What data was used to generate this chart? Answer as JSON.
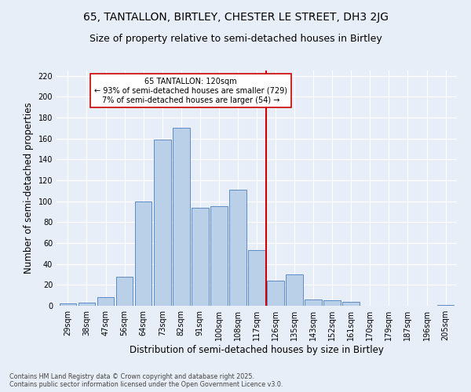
{
  "title1": "65, TANTALLON, BIRTLEY, CHESTER LE STREET, DH3 2JG",
  "title2": "Size of property relative to semi-detached houses in Birtley",
  "xlabel": "Distribution of semi-detached houses by size in Birtley",
  "ylabel": "Number of semi-detached properties",
  "footer1": "Contains HM Land Registry data © Crown copyright and database right 2025.",
  "footer2": "Contains public sector information licensed under the Open Government Licence v3.0.",
  "bins": [
    "29sqm",
    "38sqm",
    "47sqm",
    "56sqm",
    "64sqm",
    "73sqm",
    "82sqm",
    "91sqm",
    "100sqm",
    "108sqm",
    "117sqm",
    "126sqm",
    "135sqm",
    "143sqm",
    "152sqm",
    "161sqm",
    "170sqm",
    "179sqm",
    "187sqm",
    "196sqm",
    "205sqm"
  ],
  "values": [
    2,
    3,
    8,
    28,
    100,
    159,
    170,
    94,
    95,
    111,
    53,
    24,
    30,
    6,
    5,
    4,
    0,
    0,
    0,
    0,
    1
  ],
  "bar_color": "#bad0e8",
  "bar_edge_color": "#5b8bc9",
  "vline_x": 10.5,
  "vline_color": "#cc0000",
  "property_label": "65 TANTALLON: 120sqm",
  "pct_smaller": 93,
  "count_smaller": 729,
  "pct_larger": 7,
  "count_larger": 54,
  "annotation_box_color": "#cc0000",
  "ylim": [
    0,
    225
  ],
  "yticks": [
    0,
    20,
    40,
    60,
    80,
    100,
    120,
    140,
    160,
    180,
    200,
    220
  ],
  "bg_color": "#e8eef7",
  "plot_bg_color": "#e8eef7",
  "title1_fontsize": 10,
  "title2_fontsize": 9,
  "tick_fontsize": 7,
  "ylabel_fontsize": 8.5,
  "xlabel_fontsize": 8.5,
  "footer_fontsize": 5.8,
  "annotation_fontsize": 7
}
